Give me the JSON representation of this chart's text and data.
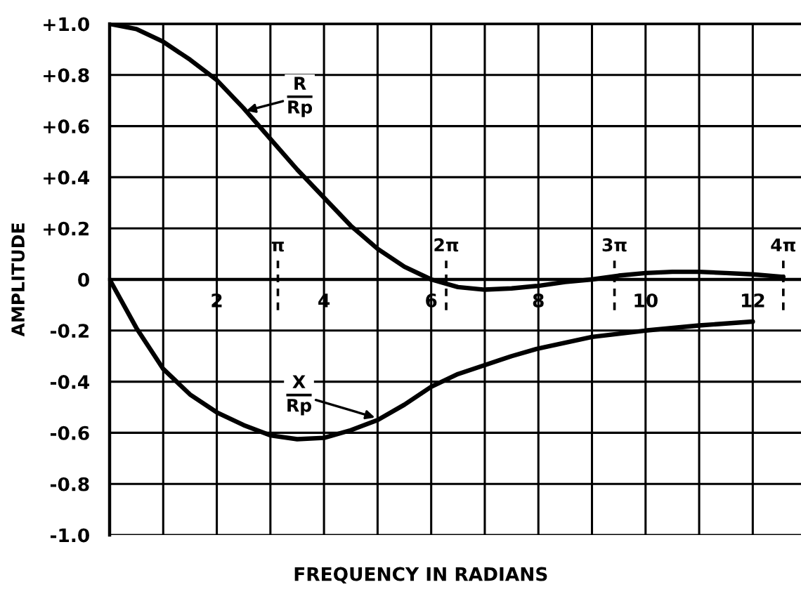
{
  "chart_data": {
    "type": "line",
    "xlabel": "FREQUENCY IN RADIANS",
    "ylabel": "AMPLITUDE",
    "series": [
      {
        "color": "#000000",
        "x": [
          0,
          0.5,
          1,
          1.5,
          2,
          2.5,
          3,
          3.5,
          4,
          4.5,
          5,
          5.5,
          6,
          6.5,
          7,
          7.5,
          8,
          8.5,
          9,
          9.5,
          10,
          10.5,
          11,
          11.5,
          12,
          12.57
        ],
        "values": [
          1.0,
          0.98,
          0.93,
          0.86,
          0.78,
          0.67,
          0.55,
          0.43,
          0.32,
          0.21,
          0.12,
          0.05,
          0.0,
          -0.03,
          -0.04,
          -0.035,
          -0.025,
          -0.01,
          0.0,
          0.015,
          0.025,
          0.03,
          0.03,
          0.025,
          0.02,
          0.01
        ]
      },
      {
        "color": "#000000",
        "x": [
          0,
          0.5,
          1,
          1.5,
          2,
          2.5,
          3,
          3.5,
          4,
          4.5,
          5,
          5.5,
          6,
          6.5,
          7,
          7.5,
          8,
          9,
          10,
          11,
          12
        ],
        "values": [
          0.0,
          -0.19,
          -0.35,
          -0.45,
          -0.52,
          -0.57,
          -0.61,
          -0.625,
          -0.62,
          -0.59,
          -0.55,
          -0.49,
          -0.42,
          -0.37,
          -0.335,
          -0.3,
          -0.27,
          -0.225,
          -0.2,
          -0.18,
          -0.165
        ]
      }
    ],
    "xlim": [
      0,
      12.9
    ],
    "ylim": [
      -1.0,
      1.0
    ],
    "xticks": [
      {
        "value": 1,
        "label": null
      },
      2,
      {
        "value": 3,
        "label": null
      },
      4,
      {
        "value": 5,
        "label": null
      },
      6,
      {
        "value": 7,
        "label": null
      },
      8,
      {
        "value": 9,
        "label": null
      },
      10,
      {
        "value": 11,
        "label": null
      },
      12
    ],
    "yticks": [
      {
        "value": -1.0,
        "label": "-1.0"
      },
      -0.8,
      -0.6,
      -0.4,
      -0.2,
      0,
      {
        "value": 0.2,
        "label": "+0.2"
      },
      {
        "value": 0.4,
        "label": "+0.4"
      },
      {
        "value": 0.6,
        "label": "+0.6"
      },
      {
        "value": 0.8,
        "label": "+0.8"
      },
      {
        "value": 1.0,
        "label": "+1.0"
      }
    ],
    "grid": true,
    "line_style": "solid",
    "ref_lines": [
      {
        "axis": "x",
        "value": 3.14,
        "label": "π",
        "color": "#000000",
        "line_style": "dashed"
      },
      {
        "axis": "x",
        "value": 6.28,
        "label": "2π",
        "color": "#000000",
        "line_style": "dashed"
      },
      {
        "axis": "x",
        "value": 9.42,
        "label": "3π",
        "color": "#000000",
        "line_style": "dashed"
      },
      {
        "axis": "x",
        "value": 12.57,
        "label": "4π",
        "color": "#000000",
        "line_style": "dashed"
      }
    ],
    "annotations": [
      {
        "text": "R\nRp",
        "x": 2.55,
        "y": 0.66
      },
      {
        "text": "X\nRp",
        "x": 4.95,
        "y": -0.54
      }
    ]
  }
}
